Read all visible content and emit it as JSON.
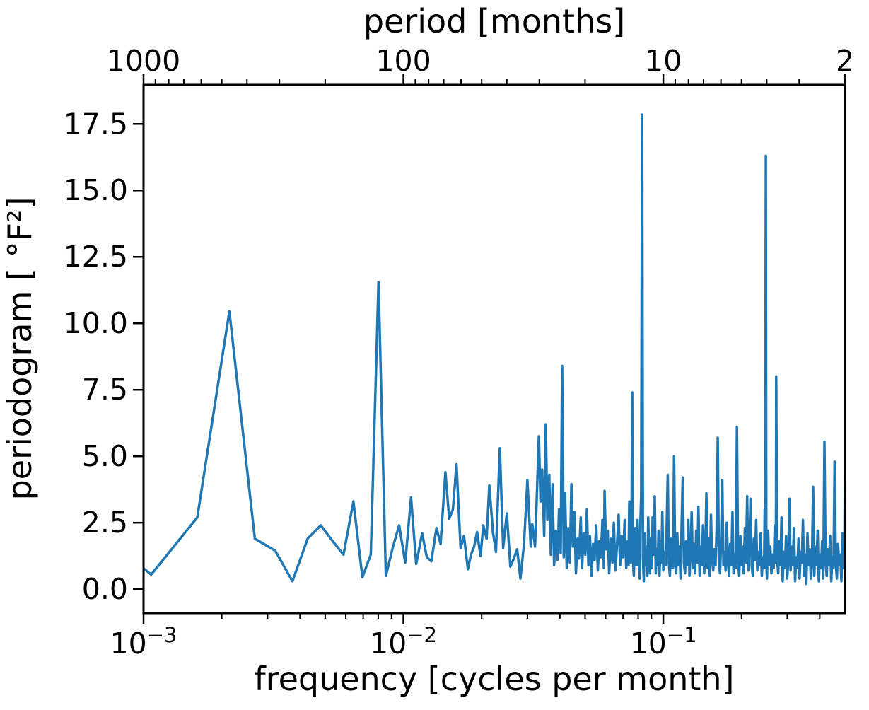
{
  "chart_data": {
    "type": "line",
    "series_name": "periodogram",
    "line_color": "#1f77b4",
    "line_width": 3.5,
    "background_color": "#ffffff",
    "grid": false,
    "legend": false,
    "xscale": "log",
    "xlim": [
      0.001,
      0.5
    ],
    "ylim": [
      -0.9,
      18.97
    ],
    "bottom_axis": {
      "label": "frequency [cycles per month]",
      "major": [
        {
          "value": 0.001,
          "base": "10",
          "exp": "−3"
        },
        {
          "value": 0.01,
          "base": "10",
          "exp": "−2"
        },
        {
          "value": 0.1,
          "base": "10",
          "exp": "−1"
        }
      ],
      "minor_freqs": [
        0.002,
        0.003,
        0.004,
        0.005,
        0.006,
        0.007,
        0.008,
        0.009,
        0.02,
        0.03,
        0.04,
        0.05,
        0.06,
        0.07,
        0.08,
        0.09,
        0.2,
        0.3,
        0.4
      ]
    },
    "top_axis": {
      "label": "period [months]",
      "major": [
        {
          "period": 1000,
          "label": "1000"
        },
        {
          "period": 100,
          "label": "100"
        },
        {
          "period": 10,
          "label": "10"
        },
        {
          "period": 2,
          "label": "2"
        }
      ],
      "minor_periods": [
        900,
        800,
        700,
        600,
        500,
        400,
        300,
        200,
        90,
        80,
        70,
        60,
        50,
        40,
        30,
        20,
        9,
        8,
        7,
        6,
        5,
        4,
        3
      ]
    },
    "y_axis": {
      "label": "periodogram [ °F²]",
      "ticks": [
        0.0,
        2.5,
        5.0,
        7.5,
        10.0,
        12.5,
        15.0,
        17.5
      ],
      "tick_labels": [
        "0.0",
        "2.5",
        "5.0",
        "7.5",
        "10.0",
        "12.5",
        "15.0",
        "17.5"
      ]
    },
    "notable_peaks": [
      {
        "frequency": 0.00214,
        "power": 10.45
      },
      {
        "frequency": 0.00802,
        "power": 11.55
      },
      {
        "frequency": 0.0408,
        "power": 8.4
      },
      {
        "frequency": 0.0759,
        "power": 7.4
      },
      {
        "frequency": 0.0829,
        "power": 17.85
      },
      {
        "frequency": 0.248,
        "power": 16.3
      },
      {
        "frequency": 0.272,
        "power": 8.0
      },
      {
        "frequency": 0.417,
        "power": 5.55
      }
    ],
    "points": [
      [
        0.001,
        0.78
      ],
      [
        0.00107,
        0.55
      ],
      [
        0.00161,
        2.7
      ],
      [
        0.00214,
        10.45
      ],
      [
        0.00268,
        1.9
      ],
      [
        0.00321,
        1.45
      ],
      [
        0.00374,
        0.3
      ],
      [
        0.00428,
        1.9
      ],
      [
        0.00481,
        2.4
      ],
      [
        0.00535,
        1.8
      ],
      [
        0.00588,
        1.3
      ],
      [
        0.00642,
        3.3
      ],
      [
        0.00695,
        0.45
      ],
      [
        0.00749,
        1.3
      ],
      [
        0.00802,
        11.55
      ],
      [
        0.00856,
        0.5
      ],
      [
        0.00909,
        1.55
      ],
      [
        0.00963,
        2.4
      ],
      [
        0.01016,
        1.0
      ],
      [
        0.0107,
        3.45
      ],
      [
        0.0112,
        0.95
      ],
      [
        0.0118,
        2.1
      ],
      [
        0.0123,
        1.2
      ],
      [
        0.0128,
        1.05
      ],
      [
        0.0134,
        2.3
      ],
      [
        0.0139,
        1.7
      ],
      [
        0.0145,
        4.4
      ],
      [
        0.015,
        2.65
      ],
      [
        0.0155,
        3.0
      ],
      [
        0.016,
        4.7
      ],
      [
        0.0166,
        1.55
      ],
      [
        0.0171,
        2.0
      ],
      [
        0.0177,
        0.75
      ],
      [
        0.0182,
        1.3
      ],
      [
        0.0187,
        1.6
      ],
      [
        0.0192,
        2.15
      ],
      [
        0.0198,
        1.25
      ],
      [
        0.0203,
        2.4
      ],
      [
        0.0209,
        1.9
      ],
      [
        0.0214,
        3.9
      ],
      [
        0.0221,
        2.15
      ],
      [
        0.0227,
        1.4
      ],
      [
        0.0235,
        5.3
      ],
      [
        0.0242,
        1.55
      ],
      [
        0.025,
        2.85
      ],
      [
        0.0258,
        0.85
      ],
      [
        0.0266,
        1.15
      ],
      [
        0.0274,
        1.5
      ],
      [
        0.0282,
        0.4
      ],
      [
        0.0291,
        1.7
      ],
      [
        0.03,
        4.1
      ],
      [
        0.0309,
        1.6
      ],
      [
        0.0313,
        2.45
      ],
      [
        0.0321,
        1.6
      ],
      [
        0.0326,
        3.5
      ],
      [
        0.0332,
        5.75
      ],
      [
        0.0337,
        3.3
      ],
      [
        0.0342,
        4.5
      ],
      [
        0.0348,
        2.0
      ],
      [
        0.0353,
        6.2
      ],
      [
        0.0358,
        2.6
      ],
      [
        0.0364,
        4.3
      ],
      [
        0.0369,
        1.3
      ],
      [
        0.0375,
        3.95
      ],
      [
        0.038,
        0.9
      ],
      [
        0.0386,
        2.2
      ],
      [
        0.0392,
        1.1
      ],
      [
        0.0397,
        3.0
      ],
      [
        0.0403,
        1.35
      ],
      [
        0.0408,
        8.4
      ],
      [
        0.0414,
        1.2
      ],
      [
        0.0419,
        3.6
      ],
      [
        0.0425,
        0.8
      ],
      [
        0.0431,
        2.3
      ],
      [
        0.0437,
        1.0
      ],
      [
        0.0443,
        3.95
      ],
      [
        0.0449,
        1.6
      ],
      [
        0.0455,
        2.9
      ],
      [
        0.0461,
        0.6
      ],
      [
        0.0468,
        1.9
      ],
      [
        0.0474,
        1.15
      ],
      [
        0.0481,
        2.7
      ],
      [
        0.0487,
        0.8
      ],
      [
        0.0494,
        2.1
      ],
      [
        0.0501,
        1.3
      ],
      [
        0.0508,
        3.0
      ],
      [
        0.0515,
        0.9
      ],
      [
        0.0522,
        2.0
      ],
      [
        0.0529,
        0.5
      ],
      [
        0.0537,
        1.7
      ],
      [
        0.0544,
        1.1
      ],
      [
        0.0552,
        2.4
      ],
      [
        0.056,
        0.7
      ],
      [
        0.0567,
        1.8
      ],
      [
        0.0575,
        1.2
      ],
      [
        0.0583,
        2.6
      ],
      [
        0.0591,
        0.8
      ],
      [
        0.0594,
        3.7
      ],
      [
        0.0602,
        1.5
      ],
      [
        0.0611,
        2.2
      ],
      [
        0.0619,
        0.6
      ],
      [
        0.0628,
        1.9
      ],
      [
        0.0637,
        1.0
      ],
      [
        0.0645,
        2.5
      ],
      [
        0.0654,
        0.7
      ],
      [
        0.0663,
        1.6
      ],
      [
        0.0673,
        2.8
      ],
      [
        0.0682,
        0.9
      ],
      [
        0.0691,
        2.0
      ],
      [
        0.0701,
        1.2
      ],
      [
        0.071,
        2.6
      ],
      [
        0.072,
        0.8
      ],
      [
        0.0725,
        1.5
      ],
      [
        0.073,
        1.8
      ],
      [
        0.0735,
        0.9
      ],
      [
        0.074,
        3.3
      ],
      [
        0.0745,
        1.6
      ],
      [
        0.075,
        1.0
      ],
      [
        0.0755,
        2.2
      ],
      [
        0.0759,
        7.4
      ],
      [
        0.0764,
        1.1
      ],
      [
        0.077,
        0.5
      ],
      [
        0.0775,
        2.0
      ],
      [
        0.078,
        2.3
      ],
      [
        0.0785,
        0.9
      ],
      [
        0.079,
        1.3
      ],
      [
        0.0796,
        2.6
      ],
      [
        0.0801,
        0.9
      ],
      [
        0.0806,
        1.8
      ],
      [
        0.0811,
        0.4
      ],
      [
        0.0816,
        2.4
      ],
      [
        0.0822,
        3.5
      ],
      [
        0.0829,
        17.85
      ],
      [
        0.0835,
        1.2
      ],
      [
        0.0841,
        0.3
      ],
      [
        0.0847,
        2.1
      ],
      [
        0.0854,
        0.9
      ],
      [
        0.0861,
        1.6
      ],
      [
        0.0868,
        0.5
      ],
      [
        0.0875,
        2.7
      ],
      [
        0.0882,
        1.1
      ],
      [
        0.0889,
        0.6
      ],
      [
        0.0896,
        1.9
      ],
      [
        0.0903,
        0.8
      ],
      [
        0.091,
        2.7
      ],
      [
        0.0917,
        1.3
      ],
      [
        0.0927,
        3.5
      ],
      [
        0.0935,
        0.6
      ],
      [
        0.0943,
        1.5
      ],
      [
        0.0951,
        0.9
      ],
      [
        0.0959,
        2.2
      ],
      [
        0.0967,
        0.5
      ],
      [
        0.0975,
        1.8
      ],
      [
        0.0983,
        1.0
      ],
      [
        0.0991,
        2.9
      ],
      [
        0.1,
        0.7
      ],
      [
        0.101,
        1.4
      ],
      [
        0.102,
        0.9
      ],
      [
        0.103,
        2.3
      ],
      [
        0.104,
        4.3
      ],
      [
        0.105,
        1.0
      ],
      [
        0.106,
        0.5
      ],
      [
        0.107,
        1.9
      ],
      [
        0.108,
        0.8
      ],
      [
        0.109,
        0.8
      ],
      [
        0.11,
        5.0
      ],
      [
        0.111,
        1.2
      ],
      [
        0.1121,
        0.6
      ],
      [
        0.1132,
        2.1
      ],
      [
        0.1143,
        0.9
      ],
      [
        0.1154,
        1.6
      ],
      [
        0.1165,
        0.4
      ],
      [
        0.1176,
        2.4
      ],
      [
        0.1188,
        4.2
      ],
      [
        0.12,
        1.0
      ],
      [
        0.1212,
        0.6
      ],
      [
        0.1224,
        1.8
      ],
      [
        0.1236,
        0.9
      ],
      [
        0.1248,
        2.6
      ],
      [
        0.1261,
        0.5
      ],
      [
        0.1273,
        1.3
      ],
      [
        0.1286,
        2.9
      ],
      [
        0.1299,
        0.8
      ],
      [
        0.1312,
        1.7
      ],
      [
        0.1325,
        0.6
      ],
      [
        0.1338,
        2.2
      ],
      [
        0.1352,
        1.0
      ],
      [
        0.1365,
        3.1
      ],
      [
        0.1379,
        0.5
      ],
      [
        0.1393,
        1.6
      ],
      [
        0.1407,
        0.9
      ],
      [
        0.1421,
        2.4
      ],
      [
        0.1436,
        0.6
      ],
      [
        0.145,
        1.2
      ],
      [
        0.1465,
        3.6
      ],
      [
        0.148,
        0.8
      ],
      [
        0.1495,
        1.9
      ],
      [
        0.151,
        0.5
      ],
      [
        0.1525,
        2.8
      ],
      [
        0.1541,
        1.1
      ],
      [
        0.1556,
        0.7
      ],
      [
        0.1572,
        1.5
      ],
      [
        0.1588,
        0.9
      ],
      [
        0.1604,
        2.2
      ],
      [
        0.162,
        5.7
      ],
      [
        0.1636,
        1.0
      ],
      [
        0.1653,
        0.6
      ],
      [
        0.1669,
        1.8
      ],
      [
        0.1686,
        4.1
      ],
      [
        0.1703,
        0.9
      ],
      [
        0.172,
        1.4
      ],
      [
        0.1737,
        0.7
      ],
      [
        0.1755,
        2.5
      ],
      [
        0.1772,
        1.1
      ],
      [
        0.179,
        0.5
      ],
      [
        0.1808,
        1.7
      ],
      [
        0.1826,
        0.9
      ],
      [
        0.1845,
        2.9
      ],
      [
        0.1863,
        0.6
      ],
      [
        0.1882,
        1.3
      ],
      [
        0.1901,
        0.8
      ],
      [
        0.192,
        6.1
      ],
      [
        0.1939,
        1.1
      ],
      [
        0.1959,
        0.5
      ],
      [
        0.1979,
        2.0
      ],
      [
        0.1999,
        0.9
      ],
      [
        0.2019,
        1.6
      ],
      [
        0.2039,
        0.6
      ],
      [
        0.206,
        2.3
      ],
      [
        0.2081,
        1.0
      ],
      [
        0.2102,
        3.5
      ],
      [
        0.2123,
        0.7
      ],
      [
        0.2144,
        1.5
      ],
      [
        0.2166,
        3.4
      ],
      [
        0.2188,
        0.9
      ],
      [
        0.221,
        0.5
      ],
      [
        0.2232,
        1.9
      ],
      [
        0.2254,
        1.1
      ],
      [
        0.2277,
        2.6
      ],
      [
        0.23,
        0.7
      ],
      [
        0.2323,
        1.4
      ],
      [
        0.2346,
        0.9
      ],
      [
        0.237,
        2.1
      ],
      [
        0.2394,
        0.5
      ],
      [
        0.2418,
        1.2
      ],
      [
        0.2442,
        0.8
      ],
      [
        0.2455,
        3.0
      ],
      [
        0.2467,
        1.5
      ],
      [
        0.248,
        16.3
      ],
      [
        0.2492,
        1.0
      ],
      [
        0.2505,
        0.4
      ],
      [
        0.253,
        2.2
      ],
      [
        0.2555,
        0.9
      ],
      [
        0.2581,
        1.6
      ],
      [
        0.2607,
        0.6
      ],
      [
        0.2633,
        1.3
      ],
      [
        0.2659,
        0.8
      ],
      [
        0.2686,
        2.4
      ],
      [
        0.2713,
        1.0
      ],
      [
        0.272,
        8.0
      ],
      [
        0.274,
        1.2
      ],
      [
        0.2767,
        0.6
      ],
      [
        0.2795,
        1.8
      ],
      [
        0.2823,
        0.9
      ],
      [
        0.2851,
        2.7
      ],
      [
        0.288,
        0.3
      ],
      [
        0.2909,
        1.4
      ],
      [
        0.2938,
        0.8
      ],
      [
        0.2967,
        2.0
      ],
      [
        0.2997,
        0.4
      ],
      [
        0.3027,
        1.1
      ],
      [
        0.3057,
        3.4
      ],
      [
        0.3088,
        0.7
      ],
      [
        0.3119,
        1.6
      ],
      [
        0.315,
        0.9
      ],
      [
        0.3182,
        2.3
      ],
      [
        0.3214,
        0.3
      ],
      [
        0.3246,
        1.2
      ],
      [
        0.3279,
        0.8
      ],
      [
        0.3312,
        1.9
      ],
      [
        0.3345,
        0.4
      ],
      [
        0.3379,
        1.4
      ],
      [
        0.3413,
        1.0
      ],
      [
        0.3447,
        2.6
      ],
      [
        0.3482,
        0.5
      ],
      [
        0.3517,
        1.3
      ],
      [
        0.3552,
        0.2
      ],
      [
        0.3588,
        2.1
      ],
      [
        0.3624,
        0.9
      ],
      [
        0.366,
        1.5
      ],
      [
        0.3697,
        0.4
      ],
      [
        0.3734,
        1.0
      ],
      [
        0.3772,
        3.85
      ],
      [
        0.381,
        0.5
      ],
      [
        0.3849,
        1.6
      ],
      [
        0.3887,
        0.9
      ],
      [
        0.3927,
        2.2
      ],
      [
        0.3966,
        0.3
      ],
      [
        0.4006,
        1.3
      ],
      [
        0.4046,
        0.8
      ],
      [
        0.4087,
        1.8
      ],
      [
        0.4128,
        0.4
      ],
      [
        0.417,
        5.55
      ],
      [
        0.4212,
        1.1
      ],
      [
        0.4254,
        0.5
      ],
      [
        0.4297,
        1.5
      ],
      [
        0.434,
        0.9
      ],
      [
        0.4384,
        2.0
      ],
      [
        0.4428,
        0.3
      ],
      [
        0.4472,
        1.2
      ],
      [
        0.4517,
        0.8
      ],
      [
        0.4563,
        4.8
      ],
      [
        0.4609,
        1.0
      ],
      [
        0.4655,
        0.4
      ],
      [
        0.4702,
        1.7
      ],
      [
        0.4749,
        0.9
      ],
      [
        0.4797,
        1.3
      ],
      [
        0.4845,
        0.3
      ],
      [
        0.4894,
        2.1
      ],
      [
        0.4943,
        0.8
      ],
      [
        0.4975,
        1.5
      ],
      [
        0.5,
        4.5
      ]
    ]
  }
}
